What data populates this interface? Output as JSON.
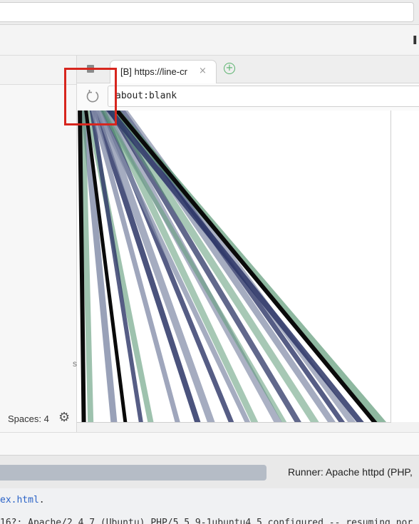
{
  "browser_tab": {
    "label": "[B] https://line-cr",
    "close_glyph": "×",
    "new_tab_glyph": "+"
  },
  "address_bar": {
    "value": "about:blank"
  },
  "toolbar": {
    "glyph": "ı"
  },
  "editor_status": {
    "spaces": "Spaces: 4",
    "gear_glyph": "⚙",
    "settings_fragment": "s"
  },
  "runner": {
    "label": "Runner: Apache httpd (PHP,"
  },
  "console": {
    "file": "ex.html",
    "line1_suffix": ".",
    "line2": "16?: Apache/2.4.7 (Ubuntu) PHP/5.5.9-1ubuntu4.5 configured -- resuming nor"
  },
  "colors": {
    "line_navy": "#2c3566",
    "line_slate": "#8790ab",
    "line_green": "#5e9a78",
    "line_black": "#0a0a0a",
    "highlight": "#d7261e",
    "new_tab_green": "#58b26c",
    "link_blue": "#2b63c7"
  },
  "icons": {
    "reload": "reload-icon",
    "page": "page-icon",
    "new_tab": "plus-circle-icon",
    "gear": "gear-icon"
  }
}
